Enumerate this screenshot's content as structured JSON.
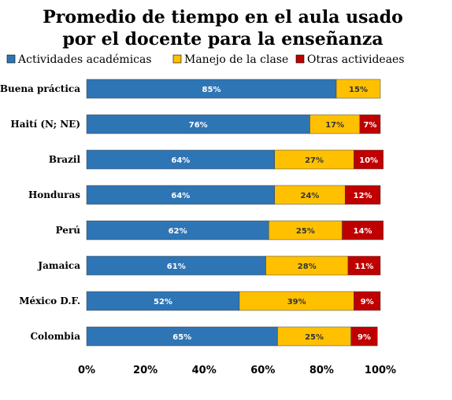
{
  "chart_data": {
    "type": "bar",
    "orientation": "horizontal",
    "stacked": true,
    "title_lines": [
      "Promedio de tiempo en el aula usado",
      "por el docente para la enseñanza"
    ],
    "categories": [
      "Buena práctica",
      "Haití (N; NE)",
      "Brazil",
      "Honduras",
      "Perú",
      "Jamaica",
      "México D.F.",
      "Colombia"
    ],
    "series": [
      {
        "name": "Actividades académicas",
        "color": "#2E75B6",
        "values": [
          85,
          76,
          64,
          64,
          62,
          61,
          52,
          65
        ],
        "labels": [
          "85%",
          "76%",
          "64%",
          "64%",
          "62%",
          "61%",
          "52%",
          "65%"
        ],
        "label_color": "#ffffff"
      },
      {
        "name": "Manejo de la clase",
        "color": "#FFC000",
        "values": [
          15,
          17,
          27,
          24,
          25,
          28,
          39,
          25
        ],
        "labels": [
          "15%",
          "17%",
          "27%",
          "24%",
          "25%",
          "28%",
          "39%",
          "25%"
        ],
        "label_color": "#333333"
      },
      {
        "name": "Otras activideaes",
        "color": "#C00000",
        "values": [
          0,
          7,
          10,
          12,
          14,
          11,
          9,
          9
        ],
        "labels": [
          "",
          "7%",
          "10%",
          "12%",
          "14%",
          "11%",
          "9%",
          "9%"
        ],
        "label_color": "#ffffff"
      }
    ],
    "xlim": [
      0,
      100
    ],
    "x_ticks": [
      0,
      20,
      40,
      60,
      80,
      100
    ],
    "x_tick_labels": [
      "0%",
      "20%",
      "40%",
      "60%",
      "80%",
      "100%"
    ],
    "grid": false,
    "legend_position": "top"
  }
}
